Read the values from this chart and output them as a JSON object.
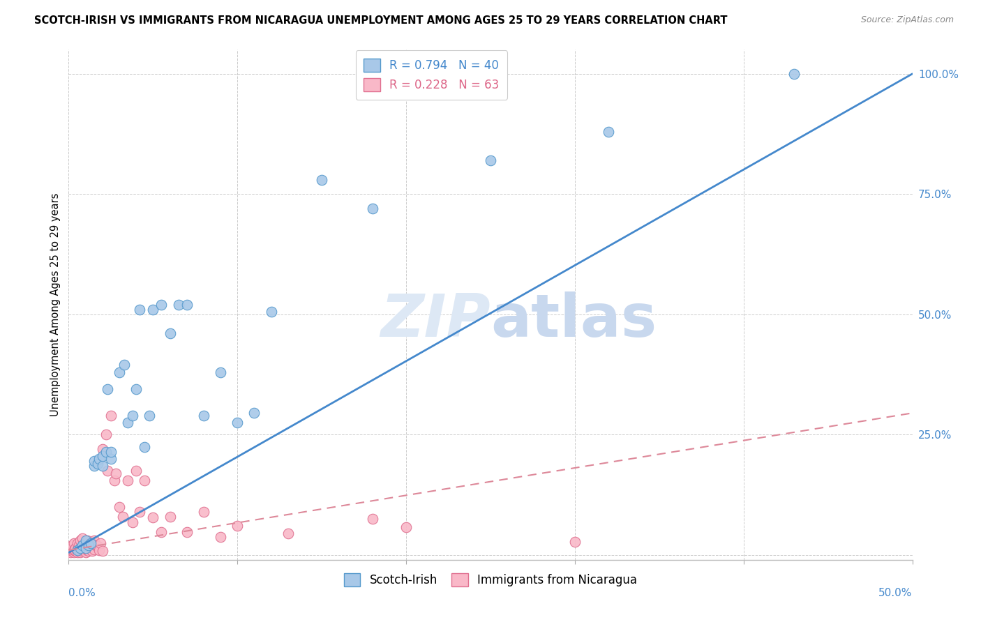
{
  "title": "SCOTCH-IRISH VS IMMIGRANTS FROM NICARAGUA UNEMPLOYMENT AMONG AGES 25 TO 29 YEARS CORRELATION CHART",
  "source": "Source: ZipAtlas.com",
  "ylabel": "Unemployment Among Ages 25 to 29 years",
  "yticks": [
    0.0,
    0.25,
    0.5,
    0.75,
    1.0
  ],
  "ytick_labels": [
    "",
    "25.0%",
    "50.0%",
    "75.0%",
    "100.0%"
  ],
  "xlim": [
    0.0,
    0.5
  ],
  "ylim": [
    -0.01,
    1.05
  ],
  "legend_r1": "R = 0.794",
  "legend_n1": "N = 40",
  "legend_r2": "R = 0.228",
  "legend_n2": "N = 63",
  "legend_label1": "Scotch-Irish",
  "legend_label2": "Immigrants from Nicaragua",
  "blue_scatter_color": "#a8c8e8",
  "blue_edge_color": "#5599cc",
  "pink_scatter_color": "#f9b8c8",
  "pink_edge_color": "#e07090",
  "blue_line_color": "#4488cc",
  "pink_line_color": "#dd8899",
  "watermark_color": "#dde8f5",
  "scotch_irish_x": [
    0.005,
    0.007,
    0.008,
    0.01,
    0.01,
    0.012,
    0.013,
    0.015,
    0.015,
    0.017,
    0.018,
    0.02,
    0.02,
    0.022,
    0.023,
    0.025,
    0.025,
    0.03,
    0.033,
    0.035,
    0.038,
    0.04,
    0.042,
    0.045,
    0.048,
    0.05,
    0.055,
    0.06,
    0.065,
    0.07,
    0.08,
    0.09,
    0.1,
    0.11,
    0.12,
    0.15,
    0.18,
    0.25,
    0.32,
    0.43
  ],
  "scotch_irish_y": [
    0.01,
    0.015,
    0.02,
    0.015,
    0.03,
    0.02,
    0.025,
    0.185,
    0.195,
    0.19,
    0.2,
    0.185,
    0.205,
    0.215,
    0.345,
    0.2,
    0.215,
    0.38,
    0.395,
    0.275,
    0.29,
    0.345,
    0.51,
    0.225,
    0.29,
    0.51,
    0.52,
    0.46,
    0.52,
    0.52,
    0.29,
    0.38,
    0.275,
    0.295,
    0.505,
    0.78,
    0.72,
    0.82,
    0.88,
    1.0
  ],
  "nicaragua_x": [
    0.001,
    0.002,
    0.002,
    0.003,
    0.003,
    0.003,
    0.004,
    0.004,
    0.005,
    0.005,
    0.005,
    0.006,
    0.006,
    0.007,
    0.007,
    0.007,
    0.008,
    0.008,
    0.008,
    0.009,
    0.009,
    0.01,
    0.01,
    0.01,
    0.011,
    0.011,
    0.012,
    0.012,
    0.013,
    0.013,
    0.014,
    0.014,
    0.015,
    0.015,
    0.016,
    0.017,
    0.018,
    0.019,
    0.02,
    0.02,
    0.022,
    0.023,
    0.025,
    0.027,
    0.028,
    0.03,
    0.032,
    0.035,
    0.038,
    0.04,
    0.042,
    0.045,
    0.05,
    0.055,
    0.06,
    0.07,
    0.08,
    0.09,
    0.1,
    0.13,
    0.18,
    0.2,
    0.3
  ],
  "nicaragua_y": [
    0.005,
    0.008,
    0.02,
    0.005,
    0.01,
    0.025,
    0.008,
    0.015,
    0.005,
    0.012,
    0.025,
    0.008,
    0.02,
    0.005,
    0.015,
    0.03,
    0.008,
    0.018,
    0.035,
    0.01,
    0.02,
    0.005,
    0.015,
    0.025,
    0.01,
    0.03,
    0.008,
    0.018,
    0.012,
    0.022,
    0.008,
    0.025,
    0.012,
    0.03,
    0.02,
    0.018,
    0.01,
    0.025,
    0.008,
    0.22,
    0.25,
    0.175,
    0.29,
    0.155,
    0.17,
    0.1,
    0.08,
    0.155,
    0.068,
    0.175,
    0.09,
    0.155,
    0.078,
    0.048,
    0.08,
    0.048,
    0.09,
    0.038,
    0.06,
    0.045,
    0.075,
    0.058,
    0.028
  ],
  "blue_trendline_x": [
    0.0,
    0.5
  ],
  "blue_trendline_y": [
    0.005,
    1.0
  ],
  "pink_trendline_x": [
    0.0,
    0.5
  ],
  "pink_trendline_y": [
    0.01,
    0.295
  ]
}
